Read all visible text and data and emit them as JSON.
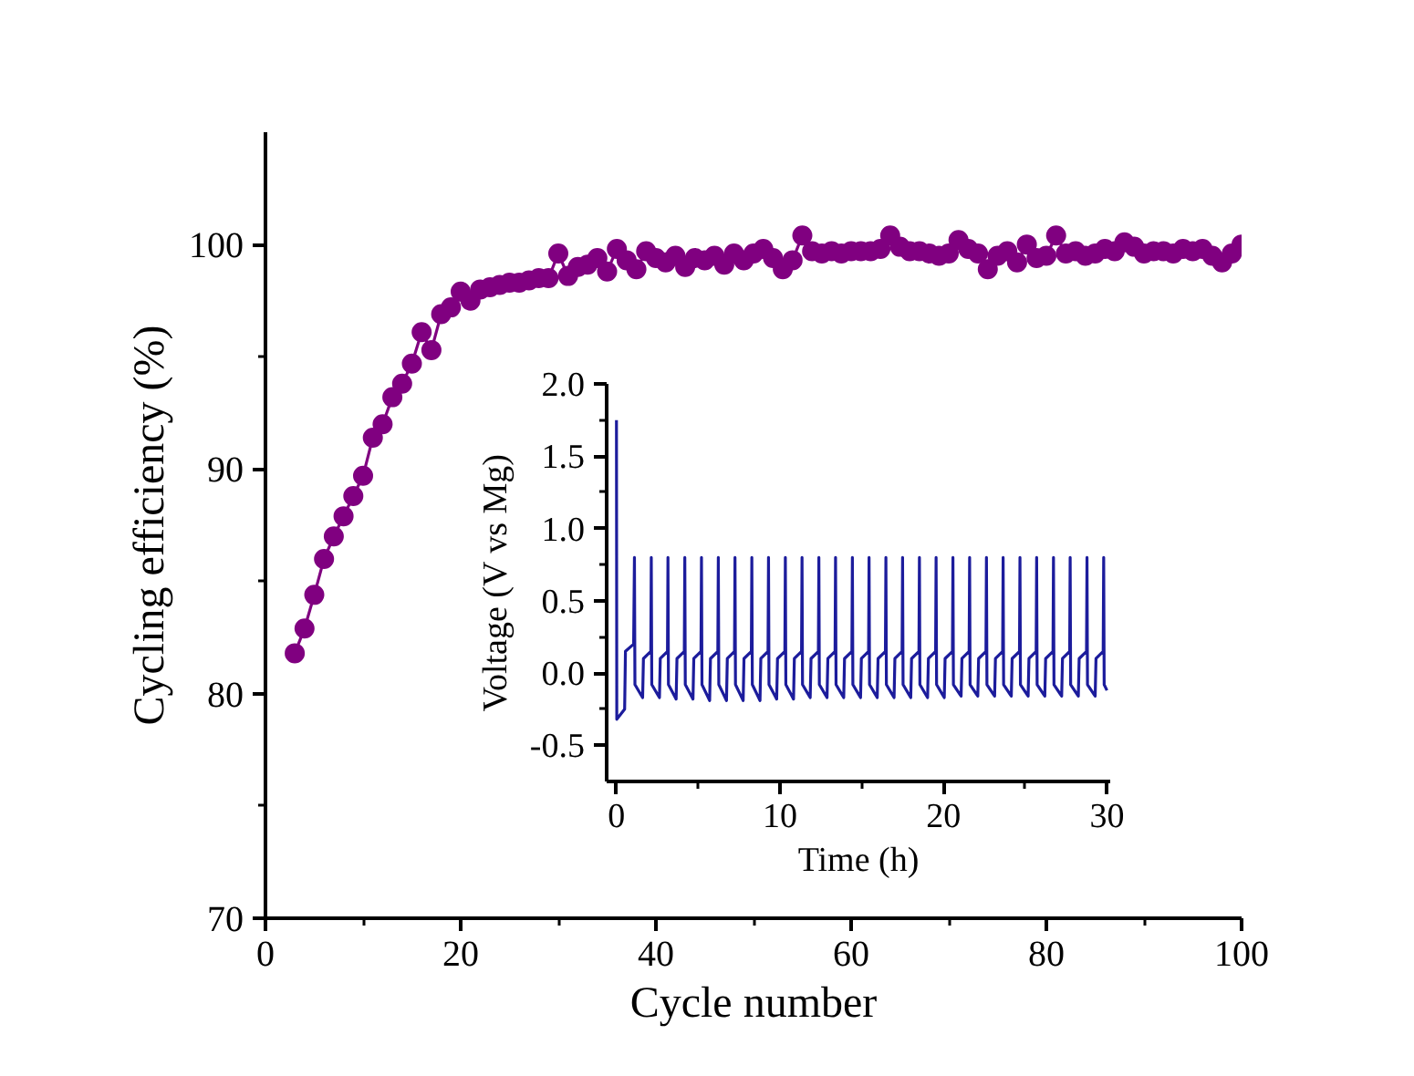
{
  "chart_data": [
    {
      "type": "line",
      "xlabel": "Cycle number",
      "ylabel": "Cycling efficiency (%)",
      "marker": "circle",
      "line_style": "solid",
      "xlim": [
        0,
        100
      ],
      "ylim": [
        70,
        105
      ],
      "xticks": [
        0,
        20,
        40,
        60,
        80,
        100
      ],
      "yticks": [
        70,
        80,
        90,
        100
      ],
      "x": [
        3,
        4,
        5,
        6,
        7,
        8,
        9,
        10,
        11,
        12,
        13,
        14,
        15,
        16,
        17,
        18,
        19,
        20,
        21,
        22,
        23,
        24,
        25,
        26,
        27,
        28,
        29,
        30,
        31,
        32,
        33,
        34,
        35,
        36,
        37,
        38,
        39,
        40,
        41,
        42,
        43,
        44,
        45,
        46,
        47,
        48,
        49,
        50,
        51,
        52,
        53,
        54,
        55,
        56,
        57,
        58,
        59,
        60,
        61,
        62,
        63,
        64,
        65,
        66,
        67,
        68,
        69,
        70,
        71,
        72,
        73,
        74,
        75,
        76,
        77,
        78,
        79,
        80,
        81,
        82,
        83,
        84,
        85,
        86,
        87,
        88,
        89,
        90,
        91,
        92,
        93,
        94,
        95,
        96,
        97,
        98,
        99,
        100
      ],
      "series": [
        {
          "color": "#800080",
          "values": [
            81.8,
            82.9,
            84.4,
            86.0,
            87.0,
            87.9,
            88.8,
            89.7,
            91.4,
            92.0,
            93.2,
            93.8,
            94.7,
            96.1,
            95.3,
            96.9,
            97.2,
            97.9,
            97.5,
            98.0,
            98.1,
            98.2,
            98.3,
            98.3,
            98.4,
            98.5,
            98.5,
            99.6,
            98.6,
            99.0,
            99.1,
            99.4,
            98.8,
            99.8,
            99.3,
            98.9,
            99.7,
            99.4,
            99.2,
            99.5,
            99.0,
            99.4,
            99.3,
            99.5,
            99.1,
            99.6,
            99.3,
            99.6,
            99.8,
            99.4,
            98.9,
            99.3,
            100.4,
            99.7,
            99.6,
            99.7,
            99.6,
            99.7,
            99.7,
            99.7,
            99.8,
            100.4,
            99.9,
            99.7,
            99.7,
            99.6,
            99.5,
            99.6,
            100.2,
            99.8,
            99.6,
            98.9,
            99.5,
            99.7,
            99.2,
            100.0,
            99.4,
            99.5,
            100.4,
            99.6,
            99.7,
            99.5,
            99.6,
            99.8,
            99.7,
            100.1,
            99.9,
            99.6,
            99.7,
            99.7,
            99.6,
            99.8,
            99.7,
            99.8,
            99.5,
            99.2,
            99.6,
            100.0
          ]
        }
      ]
    },
    {
      "type": "line",
      "xlabel": "Time (h)",
      "ylabel": "Voltage (V vs Mg)",
      "line_style": "solid",
      "xlim": [
        -0.6,
        30.2
      ],
      "ylim": [
        -0.75,
        2.0
      ],
      "xticks": [
        0,
        10,
        20,
        30
      ],
      "yticks": [
        {
          "value": -0.5,
          "label": "-0.5"
        },
        {
          "value": 0,
          "label": "0.0"
        },
        {
          "value": 0.5,
          "label": "0.5"
        },
        {
          "value": 1,
          "label": "1.0"
        },
        {
          "value": 1.5,
          "label": "1.5"
        },
        {
          "value": 2,
          "label": "2.0"
        }
      ],
      "x": [
        0,
        0.02,
        0.5,
        0.55,
        1.05,
        1.1,
        1.13,
        1.6,
        1.65,
        2.1,
        2.13,
        2.16,
        2.63,
        2.68,
        3.12,
        3.15,
        3.18,
        3.65,
        3.7,
        4.15,
        4.18,
        4.21,
        4.68,
        4.73,
        5.17,
        5.2,
        5.23,
        5.7,
        5.75,
        6.2,
        6.23,
        6.26,
        6.73,
        6.78,
        7.22,
        7.25,
        7.28,
        7.75,
        7.8,
        8.25,
        8.28,
        8.31,
        8.78,
        8.83,
        9.27,
        9.3,
        9.33,
        9.8,
        9.85,
        10.3,
        10.33,
        10.36,
        10.83,
        10.88,
        11.32,
        11.35,
        11.38,
        11.85,
        11.9,
        12.35,
        12.38,
        12.41,
        12.88,
        12.93,
        13.37,
        13.4,
        13.43,
        13.9,
        13.95,
        14.4,
        14.43,
        14.46,
        14.93,
        14.98,
        15.42,
        15.45,
        15.48,
        15.95,
        16.0,
        16.45,
        16.48,
        16.51,
        16.98,
        17.03,
        17.47,
        17.5,
        17.53,
        18.0,
        18.05,
        18.5,
        18.53,
        18.56,
        19.03,
        19.08,
        19.52,
        19.55,
        19.58,
        20.05,
        20.1,
        20.55,
        20.58,
        20.61,
        21.08,
        21.13,
        21.57,
        21.6,
        21.63,
        22.1,
        22.15,
        22.6,
        22.63,
        22.66,
        23.13,
        23.18,
        23.62,
        23.65,
        23.68,
        24.15,
        24.2,
        24.65,
        24.68,
        24.71,
        25.18,
        25.23,
        25.67,
        25.7,
        25.73,
        26.2,
        26.25,
        26.7,
        26.73,
        26.76,
        27.23,
        27.28,
        27.72,
        27.75,
        27.78,
        28.25,
        28.3,
        28.75,
        28.78,
        28.81,
        29.28,
        29.33,
        29.77,
        29.8,
        29.83,
        30.0
      ],
      "series": [
        {
          "color": "#1c1c9c",
          "values": [
            1.75,
            -0.32,
            -0.25,
            0.15,
            0.2,
            0.8,
            -0.08,
            -0.17,
            0.1,
            0.15,
            0.8,
            -0.08,
            -0.17,
            0.1,
            0.15,
            0.8,
            -0.08,
            -0.18,
            0.1,
            0.15,
            0.8,
            -0.08,
            -0.18,
            0.1,
            0.15,
            0.8,
            -0.08,
            -0.19,
            0.1,
            0.15,
            0.8,
            -0.08,
            -0.19,
            0.1,
            0.15,
            0.8,
            -0.08,
            -0.19,
            0.1,
            0.15,
            0.8,
            -0.08,
            -0.19,
            0.1,
            0.15,
            0.8,
            -0.08,
            -0.18,
            0.1,
            0.15,
            0.8,
            -0.08,
            -0.18,
            0.1,
            0.15,
            0.8,
            -0.08,
            -0.17,
            0.1,
            0.15,
            0.8,
            -0.08,
            -0.17,
            0.1,
            0.15,
            0.8,
            -0.08,
            -0.17,
            0.1,
            0.15,
            0.8,
            -0.08,
            -0.17,
            0.1,
            0.15,
            0.8,
            -0.08,
            -0.17,
            0.1,
            0.15,
            0.8,
            -0.08,
            -0.17,
            0.1,
            0.15,
            0.8,
            -0.08,
            -0.17,
            0.1,
            0.15,
            0.8,
            -0.08,
            -0.17,
            0.1,
            0.15,
            0.8,
            -0.08,
            -0.17,
            0.1,
            0.15,
            0.8,
            -0.08,
            -0.16,
            0.1,
            0.15,
            0.8,
            -0.08,
            -0.16,
            0.1,
            0.15,
            0.8,
            -0.08,
            -0.16,
            0.1,
            0.15,
            0.8,
            -0.08,
            -0.16,
            0.1,
            0.15,
            0.8,
            -0.08,
            -0.16,
            0.1,
            0.15,
            0.8,
            -0.08,
            -0.16,
            0.1,
            0.15,
            0.8,
            -0.08,
            -0.16,
            0.1,
            0.15,
            0.8,
            -0.08,
            -0.16,
            0.1,
            0.15,
            0.8,
            -0.08,
            -0.16,
            0.1,
            0.15,
            0.8,
            -0.08,
            -0.12
          ]
        }
      ]
    }
  ]
}
